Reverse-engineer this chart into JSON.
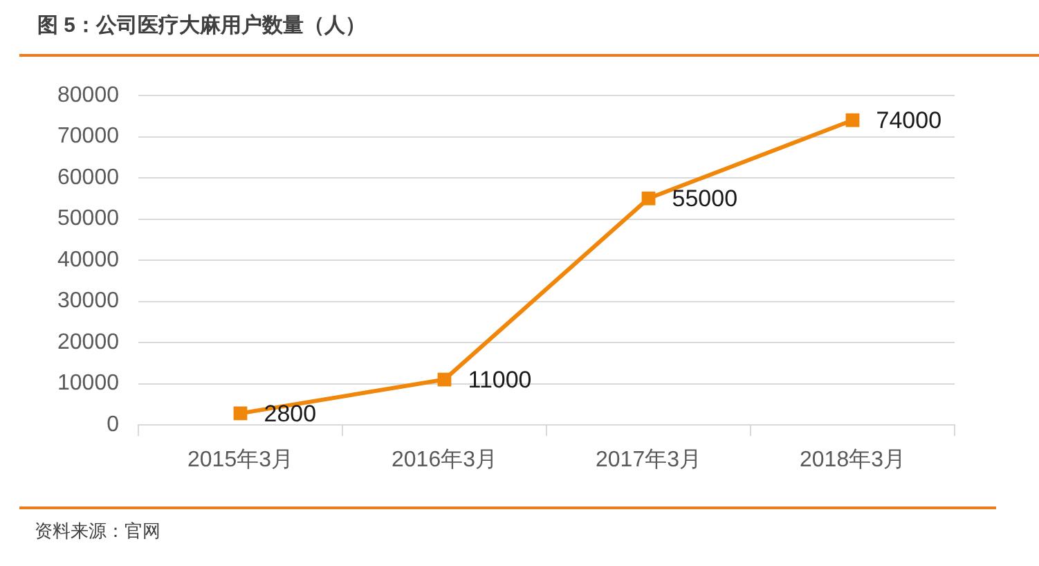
{
  "chart_data": {
    "type": "line",
    "title": "图 5：公司医疗大麻用户数量（人）",
    "categories": [
      "2015年3月",
      "2016年3月",
      "2017年3月",
      "2018年3月"
    ],
    "series": [
      {
        "color": "#f0870a",
        "values": [
          2800,
          11000,
          55000,
          74000
        ]
      }
    ],
    "ylim": [
      0,
      80000
    ],
    "yticks": [
      0,
      10000,
      20000,
      30000,
      40000,
      50000,
      60000,
      70000,
      80000
    ],
    "grid": "y",
    "marker": "square",
    "line_style": "solid",
    "data_labels": true,
    "annotations": [
      "资料来源：官网"
    ]
  }
}
